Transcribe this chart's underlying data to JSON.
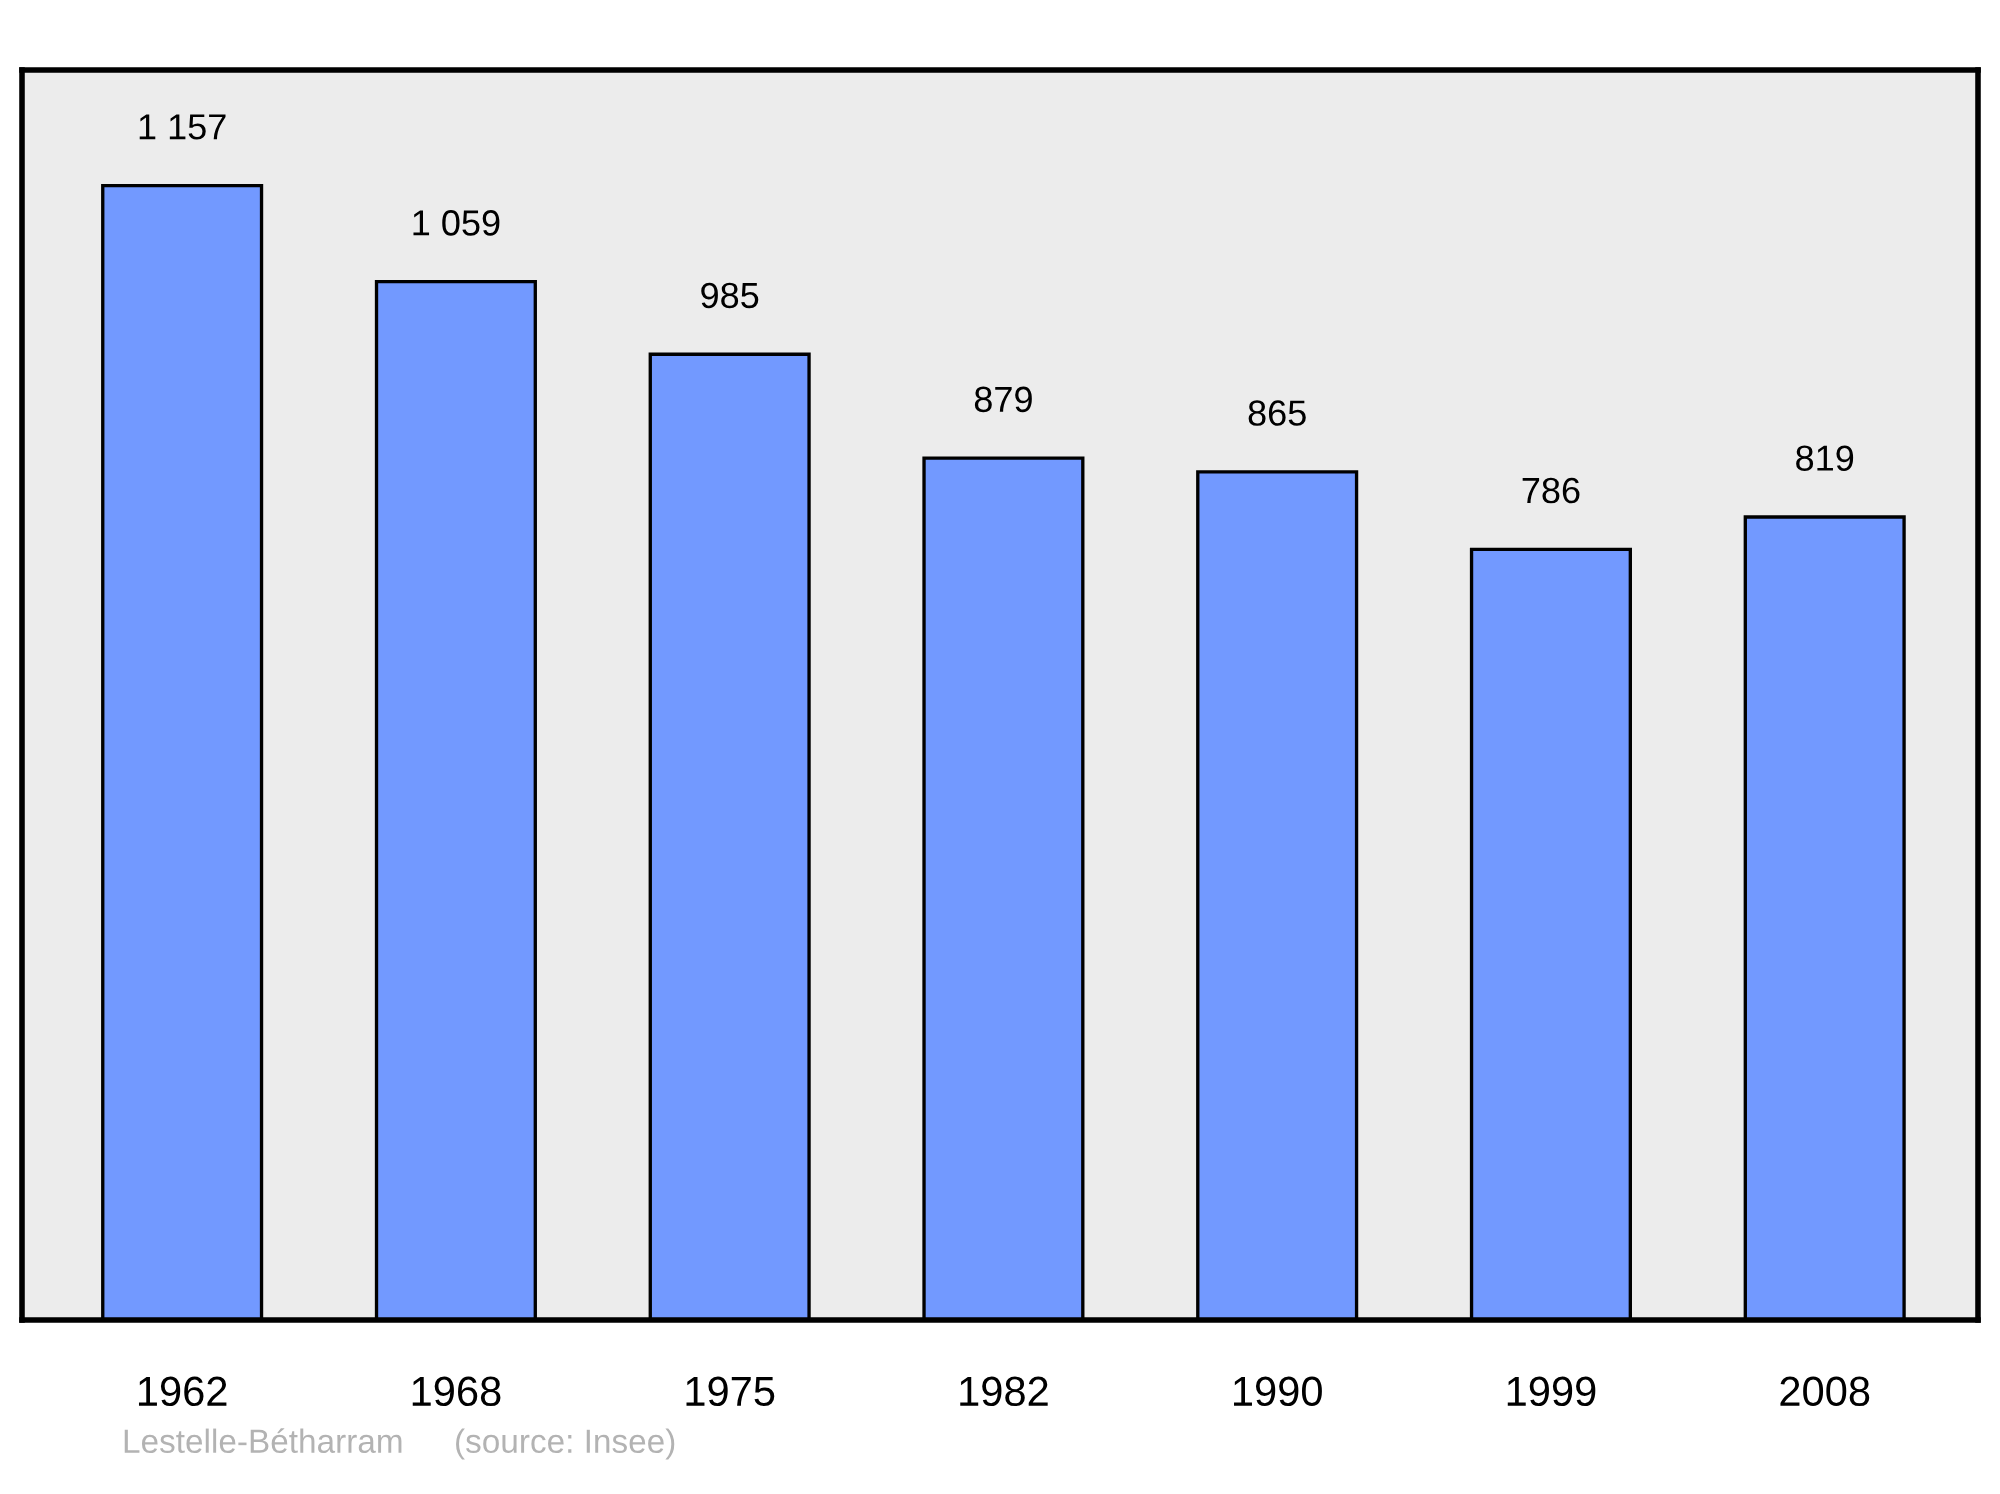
{
  "chart_data": {
    "type": "bar",
    "categories": [
      "1962",
      "1968",
      "1975",
      "1982",
      "1990",
      "1999",
      "2008"
    ],
    "values": [
      1157,
      1059,
      985,
      879,
      865,
      786,
      819
    ],
    "value_labels": [
      "1 157",
      "1 059",
      "985",
      "879",
      "865",
      "786",
      "819"
    ],
    "color": "#7299ff",
    "ylim": [
      0,
      1275
    ],
    "tick_labels": "x",
    "grid": false,
    "legend": false,
    "annotations": [
      "Lestelle-Bétharram",
      "(source: Insee)"
    ]
  }
}
